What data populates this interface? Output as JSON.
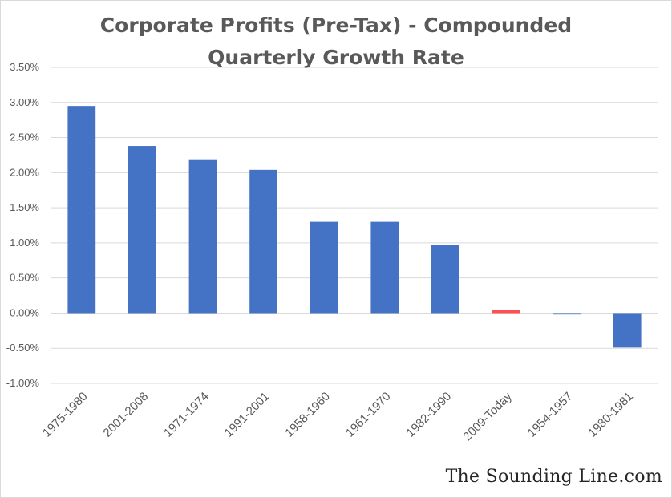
{
  "chart_data": {
    "type": "bar",
    "title_line1": "Corporate Profits (Pre-Tax) - Compounded",
    "title_line2": "Quarterly Growth Rate",
    "xlabel": "",
    "ylabel": "",
    "categories": [
      "1975-1980",
      "2001-2008",
      "1971-1974",
      "1991-2001",
      "1958-1960",
      "1961-1970",
      "1982-1990",
      "2009-Today",
      "1954-1957",
      "1980-1981"
    ],
    "values": [
      2.95,
      2.38,
      2.19,
      2.04,
      1.3,
      1.3,
      0.97,
      0.04,
      -0.02,
      -0.49
    ],
    "ylim": [
      -1.0,
      3.5
    ],
    "yticks": [
      3.5,
      3.0,
      2.5,
      2.0,
      1.5,
      1.0,
      0.5,
      0.0,
      -0.5,
      -1.0
    ],
    "ytick_labels": [
      "3.50%",
      "3.00%",
      "2.50%",
      "2.00%",
      "1.50%",
      "1.00%",
      "0.50%",
      "0.00%",
      "-0.50%",
      "-1.00%"
    ],
    "grid": true,
    "legend": "none",
    "bar_color": "#4472c4",
    "highlight_category": "2009-Today",
    "highlight_color": "#ff5050"
  },
  "watermark": "The Sounding Line.com"
}
